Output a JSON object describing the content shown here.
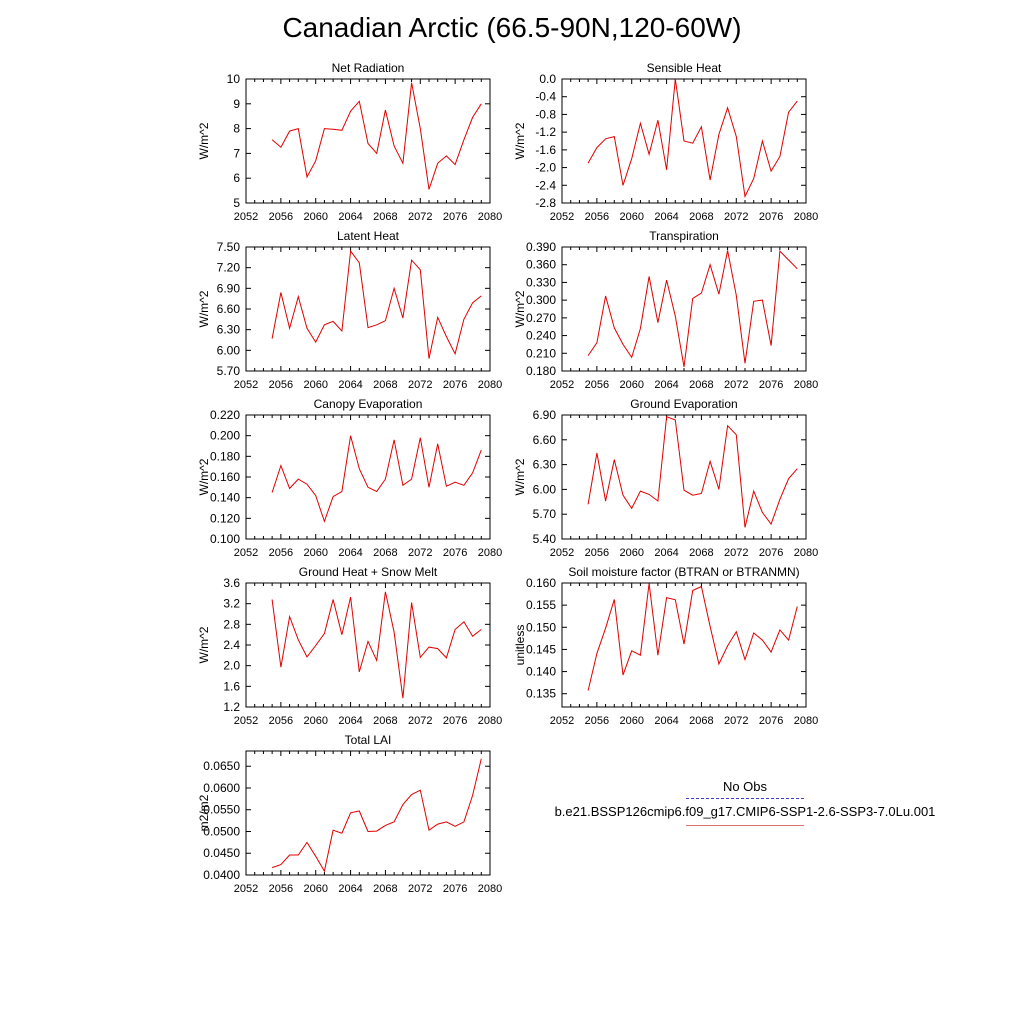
{
  "title": "Canadian Arctic (66.5-90N,120-60W)",
  "legend": {
    "obs_label": "No Obs",
    "obs_color": "#3b3bd1",
    "model_label": "b.e21.BSSP126cmip6.f09_g17.CMIP6-SSP1-2.6-SSP3-7.0Lu.001",
    "model_color": "#e07070"
  },
  "chart_data": [
    {
      "type": "line",
      "title": "Net Radiation",
      "ylabel": "W/m^2",
      "xlim": [
        2052,
        2080
      ],
      "ylim": [
        5,
        10
      ],
      "xticks": [
        "2052",
        "2056",
        "2060",
        "2064",
        "2068",
        "2072",
        "2076",
        "2080"
      ],
      "yticks": [
        "5",
        "6",
        "7",
        "8",
        "9",
        "10"
      ],
      "x": [
        2055,
        2056,
        2057,
        2058,
        2059,
        2060,
        2061,
        2062,
        2063,
        2064,
        2065,
        2066,
        2067,
        2068,
        2069,
        2070,
        2071,
        2072,
        2073,
        2074,
        2075,
        2076,
        2077,
        2078,
        2079
      ],
      "series": [
        {
          "color": "#e00000",
          "values": [
            7.55,
            7.25,
            7.9,
            8.0,
            6.05,
            6.7,
            8.0,
            7.97,
            7.93,
            8.7,
            9.1,
            7.4,
            7.0,
            8.75,
            7.3,
            6.6,
            9.85,
            8.0,
            5.55,
            6.6,
            6.9,
            6.55,
            7.55,
            8.45,
            9.0
          ]
        }
      ]
    },
    {
      "type": "line",
      "title": "Sensible Heat",
      "ylabel": "W/m^2",
      "xlim": [
        2052,
        2080
      ],
      "ylim": [
        -2.8,
        0.0
      ],
      "xticks": [
        "2052",
        "2056",
        "2060",
        "2064",
        "2068",
        "2072",
        "2076",
        "2080"
      ],
      "yticks": [
        "-2.8",
        "-2.4",
        "-2.0",
        "-1.6",
        "-1.2",
        "-0.8",
        "-0.4",
        "0.0"
      ],
      "x": [
        2055,
        2056,
        2057,
        2058,
        2059,
        2060,
        2061,
        2062,
        2063,
        2064,
        2065,
        2066,
        2067,
        2068,
        2069,
        2070,
        2071,
        2072,
        2073,
        2074,
        2075,
        2076,
        2077,
        2078,
        2079
      ],
      "series": [
        {
          "color": "#e00000",
          "values": [
            -1.9,
            -1.55,
            -1.35,
            -1.3,
            -2.4,
            -1.8,
            -1.0,
            -1.7,
            -0.93,
            -2.05,
            0.0,
            -1.4,
            -1.45,
            -1.08,
            -2.28,
            -1.25,
            -0.65,
            -1.3,
            -2.65,
            -2.25,
            -1.4,
            -2.08,
            -1.75,
            -0.75,
            -0.5
          ]
        }
      ]
    },
    {
      "type": "line",
      "title": "Latent Heat",
      "ylabel": "W/m^2",
      "xlim": [
        2052,
        2080
      ],
      "ylim": [
        5.7,
        7.5
      ],
      "xticks": [
        "2052",
        "2056",
        "2060",
        "2064",
        "2068",
        "2072",
        "2076",
        "2080"
      ],
      "yticks": [
        "5.70",
        "6.00",
        "6.30",
        "6.60",
        "6.90",
        "7.20",
        "7.50"
      ],
      "x": [
        2055,
        2056,
        2057,
        2058,
        2059,
        2060,
        2061,
        2062,
        2063,
        2064,
        2065,
        2066,
        2067,
        2068,
        2069,
        2070,
        2071,
        2072,
        2073,
        2074,
        2075,
        2076,
        2077,
        2078,
        2079
      ],
      "series": [
        {
          "color": "#e00000",
          "values": [
            6.17,
            6.84,
            6.32,
            6.78,
            6.32,
            6.12,
            6.37,
            6.42,
            6.28,
            7.44,
            7.27,
            6.33,
            6.37,
            6.43,
            6.9,
            6.47,
            7.31,
            7.17,
            5.88,
            6.48,
            6.2,
            5.95,
            6.45,
            6.69,
            6.79
          ]
        }
      ]
    },
    {
      "type": "line",
      "title": "Transpiration",
      "ylabel": "W/m^2",
      "xlim": [
        2052,
        2080
      ],
      "ylim": [
        0.18,
        0.39
      ],
      "xticks": [
        "2052",
        "2056",
        "2060",
        "2064",
        "2068",
        "2072",
        "2076",
        "2080"
      ],
      "yticks": [
        "0.180",
        "0.210",
        "0.240",
        "0.270",
        "0.300",
        "0.330",
        "0.360",
        "0.390"
      ],
      "x": [
        2055,
        2056,
        2057,
        2058,
        2059,
        2060,
        2061,
        2062,
        2063,
        2064,
        2065,
        2066,
        2067,
        2068,
        2069,
        2070,
        2071,
        2072,
        2073,
        2074,
        2075,
        2076,
        2077,
        2078,
        2079
      ],
      "series": [
        {
          "color": "#e00000",
          "values": [
            0.206,
            0.228,
            0.307,
            0.253,
            0.225,
            0.203,
            0.252,
            0.34,
            0.262,
            0.334,
            0.273,
            0.187,
            0.303,
            0.312,
            0.36,
            0.31,
            0.384,
            0.308,
            0.193,
            0.298,
            0.3,
            0.223,
            0.383,
            0.368,
            0.353
          ]
        }
      ]
    },
    {
      "type": "line",
      "title": "Canopy Evaporation",
      "ylabel": "W/m^2",
      "xlim": [
        2052,
        2080
      ],
      "ylim": [
        0.1,
        0.22
      ],
      "xticks": [
        "2052",
        "2056",
        "2060",
        "2064",
        "2068",
        "2072",
        "2076",
        "2080"
      ],
      "yticks": [
        "0.100",
        "0.120",
        "0.140",
        "0.160",
        "0.180",
        "0.200",
        "0.220"
      ],
      "x": [
        2055,
        2056,
        2057,
        2058,
        2059,
        2060,
        2061,
        2062,
        2063,
        2064,
        2065,
        2066,
        2067,
        2068,
        2069,
        2070,
        2071,
        2072,
        2073,
        2074,
        2075,
        2076,
        2077,
        2078,
        2079
      ],
      "series": [
        {
          "color": "#e00000",
          "values": [
            0.145,
            0.171,
            0.149,
            0.158,
            0.153,
            0.142,
            0.117,
            0.141,
            0.146,
            0.2,
            0.168,
            0.15,
            0.146,
            0.158,
            0.196,
            0.152,
            0.158,
            0.198,
            0.15,
            0.192,
            0.151,
            0.155,
            0.152,
            0.164,
            0.186
          ]
        }
      ]
    },
    {
      "type": "line",
      "title": "Ground Evaporation",
      "ylabel": "W/m^2",
      "xlim": [
        2052,
        2080
      ],
      "ylim": [
        5.4,
        6.9
      ],
      "xticks": [
        "2052",
        "2056",
        "2060",
        "2064",
        "2068",
        "2072",
        "2076",
        "2080"
      ],
      "yticks": [
        "5.40",
        "5.70",
        "6.00",
        "6.30",
        "6.60",
        "6.90"
      ],
      "x": [
        2055,
        2056,
        2057,
        2058,
        2059,
        2060,
        2061,
        2062,
        2063,
        2064,
        2065,
        2066,
        2067,
        2068,
        2069,
        2070,
        2071,
        2072,
        2073,
        2074,
        2075,
        2076,
        2077,
        2078,
        2079
      ],
      "series": [
        {
          "color": "#e00000",
          "values": [
            5.82,
            6.44,
            5.86,
            6.36,
            5.93,
            5.77,
            5.98,
            5.94,
            5.86,
            6.88,
            6.84,
            5.99,
            5.93,
            5.95,
            6.34,
            6.0,
            6.77,
            6.66,
            5.54,
            5.98,
            5.72,
            5.58,
            5.88,
            6.13,
            6.25
          ]
        }
      ]
    },
    {
      "type": "line",
      "title": "Ground Heat + Snow Melt",
      "ylabel": "W/m^2",
      "xlim": [
        2052,
        2080
      ],
      "ylim": [
        1.2,
        3.6
      ],
      "xticks": [
        "2052",
        "2056",
        "2060",
        "2064",
        "2068",
        "2072",
        "2076",
        "2080"
      ],
      "yticks": [
        "1.2",
        "1.6",
        "2.0",
        "2.4",
        "2.8",
        "3.2",
        "3.6"
      ],
      "x": [
        2055,
        2056,
        2057,
        2058,
        2059,
        2060,
        2061,
        2062,
        2063,
        2064,
        2065,
        2066,
        2067,
        2068,
        2069,
        2070,
        2071,
        2072,
        2073,
        2074,
        2075,
        2076,
        2077,
        2078,
        2079
      ],
      "series": [
        {
          "color": "#e00000",
          "values": [
            3.28,
            1.97,
            2.95,
            2.5,
            2.17,
            2.39,
            2.62,
            3.28,
            2.6,
            3.33,
            1.88,
            2.47,
            2.1,
            3.43,
            2.65,
            1.37,
            3.22,
            2.16,
            2.36,
            2.33,
            2.15,
            2.7,
            2.85,
            2.57,
            2.7
          ]
        }
      ]
    },
    {
      "type": "line",
      "title": "Soil moisture factor (BTRAN or BTRANMN)",
      "ylabel": "unitless",
      "xlim": [
        2052,
        2080
      ],
      "ylim": [
        0.132,
        0.16
      ],
      "xticks": [
        "2052",
        "2056",
        "2060",
        "2064",
        "2068",
        "2072",
        "2076",
        "2080"
      ],
      "yticks": [
        "0.135",
        "0.140",
        "0.145",
        "0.150",
        "0.155",
        "0.160"
      ],
      "x": [
        2055,
        2056,
        2057,
        2058,
        2059,
        2060,
        2061,
        2062,
        2063,
        2064,
        2065,
        2066,
        2067,
        2068,
        2069,
        2070,
        2071,
        2072,
        2073,
        2074,
        2075,
        2076,
        2077,
        2078,
        2079
      ],
      "series": [
        {
          "color": "#e00000",
          "values": [
            0.1357,
            0.1441,
            0.1498,
            0.1563,
            0.1392,
            0.1447,
            0.1437,
            0.1599,
            0.1437,
            0.1567,
            0.1562,
            0.1462,
            0.1583,
            0.1592,
            0.1502,
            0.1417,
            0.1458,
            0.149,
            0.1427,
            0.1487,
            0.1471,
            0.1444,
            0.1494,
            0.1471,
            0.1547
          ]
        }
      ]
    },
    {
      "type": "line",
      "title": "Total LAI",
      "ylabel": "m2/m2",
      "xlim": [
        2052,
        2080
      ],
      "ylim": [
        0.04,
        0.0685
      ],
      "xticks": [
        "2052",
        "2056",
        "2060",
        "2064",
        "2068",
        "2072",
        "2076",
        "2080"
      ],
      "yticks": [
        "0.0400",
        "0.0450",
        "0.0500",
        "0.0550",
        "0.0600",
        "0.0650"
      ],
      "x": [
        2055,
        2056,
        2057,
        2058,
        2059,
        2060,
        2061,
        2062,
        2063,
        2064,
        2065,
        2066,
        2067,
        2068,
        2069,
        2070,
        2071,
        2072,
        2073,
        2074,
        2075,
        2076,
        2077,
        2078,
        2079
      ],
      "series": [
        {
          "color": "#e00000",
          "values": [
            0.0417,
            0.0424,
            0.0446,
            0.0446,
            0.0475,
            0.0443,
            0.0409,
            0.0503,
            0.0496,
            0.0543,
            0.0547,
            0.05,
            0.0501,
            0.0514,
            0.0522,
            0.0562,
            0.0585,
            0.0595,
            0.0503,
            0.0517,
            0.0522,
            0.0512,
            0.0522,
            0.0583,
            0.0667
          ]
        }
      ]
    }
  ]
}
